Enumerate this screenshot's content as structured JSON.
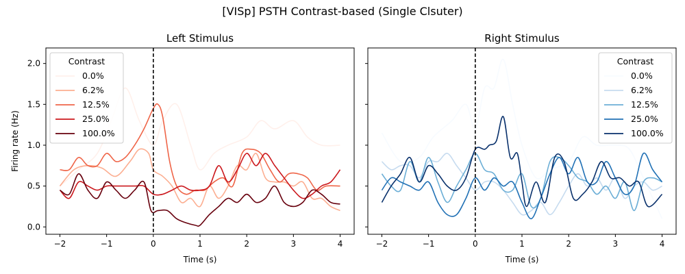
{
  "figure_title": "[VISp] PSTH Contrast-based (Single Clsuter)",
  "ylabel": "Firing rate (Hz)",
  "xlabel": "Time (s)",
  "legend_title": "Contrast",
  "chart_data": [
    {
      "type": "line",
      "title": "Left Stimulus",
      "xlabel": "Time (s)",
      "ylabel": "Firing rate (Hz)",
      "xlim": [
        -2.3,
        4.3
      ],
      "ylim": [
        -0.09,
        2.19
      ],
      "xticks": [
        -2,
        -1,
        0,
        1,
        2,
        3,
        4
      ],
      "yticks": [
        0.0,
        0.5,
        1.0,
        1.5,
        2.0
      ],
      "vline_x": 0,
      "legend": "top-left",
      "series": [
        {
          "name": "0.0%",
          "color": "#fff0eb",
          "x": [
            -2,
            -1.6,
            -1.2,
            -0.9,
            -0.6,
            -0.3,
            0,
            0.2,
            0.5,
            0.8,
            1,
            1.3,
            1.6,
            2,
            2.3,
            2.6,
            3,
            3.3,
            3.6,
            4
          ],
          "values": [
            0.5,
            0.7,
            0.9,
            1.3,
            1.7,
            1.3,
            1.0,
            1.3,
            1.5,
            1.0,
            0.7,
            0.9,
            1.0,
            1.1,
            1.3,
            1.2,
            1.3,
            1.1,
            1.0,
            1.0
          ]
        },
        {
          "name": "6.2%",
          "color": "#fcae91",
          "x": [
            -2,
            -1.7,
            -1.4,
            -1.1,
            -0.8,
            -0.5,
            -0.3,
            -0.1,
            0,
            0.2,
            0.4,
            0.6,
            0.8,
            1,
            1.2,
            1.4,
            1.6,
            1.8,
            2,
            2.2,
            2.4,
            2.6,
            2.8,
            3,
            3.2,
            3.4,
            3.6,
            3.8,
            4
          ],
          "values": [
            0.5,
            0.7,
            0.75,
            0.72,
            0.62,
            0.8,
            0.95,
            0.9,
            0.7,
            0.62,
            0.5,
            0.3,
            0.35,
            0.25,
            0.5,
            0.35,
            0.5,
            0.75,
            0.7,
            0.9,
            0.6,
            0.55,
            0.55,
            0.5,
            0.55,
            0.35,
            0.35,
            0.25,
            0.2
          ]
        },
        {
          "name": "12.5%",
          "color": "#ef6548",
          "x": [
            -2,
            -1.8,
            -1.6,
            -1.4,
            -1.2,
            -1,
            -0.8,
            -0.6,
            -0.4,
            -0.2,
            0,
            0.1,
            0.2,
            0.35,
            0.5,
            0.7,
            0.9,
            1.1,
            1.3,
            1.5,
            1.7,
            1.9,
            2.1,
            2.3,
            2.5,
            2.7,
            2.9,
            3.1,
            3.3,
            3.5,
            3.7,
            4
          ],
          "values": [
            0.7,
            0.7,
            0.85,
            0.75,
            0.75,
            0.9,
            0.8,
            0.85,
            1.0,
            1.2,
            1.45,
            1.5,
            1.35,
            0.8,
            0.5,
            0.4,
            0.45,
            0.45,
            0.55,
            0.6,
            0.5,
            0.9,
            0.95,
            0.9,
            0.7,
            0.55,
            0.65,
            0.65,
            0.6,
            0.45,
            0.5,
            0.5
          ]
        },
        {
          "name": "25.0%",
          "color": "#cb181d",
          "x": [
            -2,
            -1.8,
            -1.6,
            -1.4,
            -1.2,
            -1,
            -0.8,
            -0.6,
            -0.4,
            -0.2,
            0,
            0.2,
            0.4,
            0.6,
            0.8,
            1,
            1.2,
            1.4,
            1.6,
            1.8,
            2,
            2.2,
            2.4,
            2.6,
            2.8,
            3,
            3.2,
            3.4,
            3.6,
            3.8,
            4
          ],
          "values": [
            0.45,
            0.35,
            0.55,
            0.5,
            0.45,
            0.5,
            0.5,
            0.5,
            0.5,
            0.5,
            0.4,
            0.4,
            0.45,
            0.5,
            0.45,
            0.45,
            0.5,
            0.75,
            0.55,
            0.7,
            0.9,
            0.75,
            0.9,
            0.75,
            0.6,
            0.45,
            0.35,
            0.4,
            0.5,
            0.55,
            0.7
          ]
        },
        {
          "name": "100.0%",
          "color": "#67000d",
          "x": [
            -2,
            -1.8,
            -1.6,
            -1.4,
            -1.2,
            -1,
            -0.8,
            -0.6,
            -0.4,
            -0.2,
            -0.05,
            0.1,
            0.3,
            0.5,
            0.7,
            0.9,
            1,
            1.2,
            1.4,
            1.6,
            1.8,
            2,
            2.2,
            2.4,
            2.6,
            2.8,
            3,
            3.2,
            3.4,
            3.6,
            3.8,
            4
          ],
          "values": [
            0.45,
            0.4,
            0.65,
            0.45,
            0.35,
            0.55,
            0.45,
            0.35,
            0.45,
            0.55,
            0.2,
            0.2,
            0.2,
            0.1,
            0.05,
            0.02,
            0.02,
            0.15,
            0.25,
            0.35,
            0.3,
            0.4,
            0.3,
            0.35,
            0.5,
            0.3,
            0.25,
            0.3,
            0.45,
            0.4,
            0.3,
            0.28
          ]
        }
      ]
    },
    {
      "type": "line",
      "title": "Right Stimulus",
      "xlabel": "Time (s)",
      "ylabel": "",
      "xlim": [
        -2.3,
        4.3
      ],
      "ylim": [
        -0.09,
        2.19
      ],
      "xticks": [
        -2,
        -1,
        0,
        1,
        2,
        3,
        4
      ],
      "yticks": [
        0.0,
        0.5,
        1.0,
        1.5,
        2.0
      ],
      "vline_x": 0,
      "legend": "top-right",
      "series": [
        {
          "name": "0.0%",
          "color": "#f7fbff",
          "x": [
            -2,
            -1.6,
            -1.2,
            -0.9,
            -0.5,
            -0.2,
            0,
            0.2,
            0.4,
            0.6,
            0.8,
            1,
            1.3,
            1.6,
            2,
            2.3,
            2.6,
            3,
            3.3,
            3.6,
            4
          ],
          "values": [
            1.15,
            0.8,
            0.85,
            1.1,
            1.3,
            1.5,
            1.2,
            1.7,
            1.7,
            2.05,
            1.5,
            1.0,
            0.6,
            0.7,
            0.8,
            1.1,
            1.0,
            1.0,
            0.95,
            0.6,
            0.1
          ]
        },
        {
          "name": "6.2%",
          "color": "#c6dbef",
          "x": [
            -2,
            -1.8,
            -1.6,
            -1.4,
            -1.2,
            -1,
            -0.8,
            -0.6,
            -0.4,
            -0.2,
            0,
            0.2,
            0.4,
            0.6,
            0.8,
            1,
            1.2,
            1.4,
            1.6,
            1.8,
            2,
            2.2,
            2.4,
            2.6,
            2.8,
            3,
            3.2,
            3.4,
            3.6,
            3.8,
            4
          ],
          "values": [
            0.8,
            0.7,
            0.75,
            0.75,
            0.6,
            0.8,
            0.8,
            0.9,
            0.75,
            0.6,
            0.45,
            0.55,
            0.55,
            0.45,
            0.3,
            0.15,
            0.2,
            0.3,
            0.15,
            0.3,
            0.5,
            0.65,
            0.5,
            0.6,
            0.45,
            0.6,
            0.35,
            0.5,
            0.55,
            0.45,
            0.5
          ]
        },
        {
          "name": "12.5%",
          "color": "#6baed6",
          "x": [
            -2,
            -1.8,
            -1.6,
            -1.4,
            -1.2,
            -1,
            -0.8,
            -0.6,
            -0.4,
            -0.2,
            0,
            0.2,
            0.4,
            0.6,
            0.8,
            1,
            1.2,
            1.4,
            1.6,
            1.8,
            2,
            2.2,
            2.4,
            2.6,
            2.8,
            3,
            3.2,
            3.4,
            3.6,
            3.8,
            4
          ],
          "values": [
            0.65,
            0.5,
            0.45,
            0.8,
            0.55,
            0.85,
            0.55,
            0.3,
            0.5,
            0.7,
            0.9,
            0.7,
            0.65,
            0.45,
            0.45,
            0.65,
            0.25,
            0.35,
            0.8,
            0.85,
            0.75,
            0.6,
            0.55,
            0.4,
            0.5,
            0.35,
            0.55,
            0.2,
            0.55,
            0.6,
            0.55
          ]
        },
        {
          "name": "25.0%",
          "color": "#2171b5",
          "x": [
            -2,
            -1.8,
            -1.6,
            -1.4,
            -1.2,
            -1,
            -0.8,
            -0.6,
            -0.4,
            -0.2,
            0,
            0.2,
            0.4,
            0.6,
            0.8,
            1,
            1.2,
            1.4,
            1.6,
            1.8,
            2,
            2.2,
            2.4,
            2.6,
            2.8,
            3,
            3.2,
            3.4,
            3.6,
            3.8,
            4
          ],
          "values": [
            0.45,
            0.6,
            0.55,
            0.5,
            0.45,
            0.55,
            0.3,
            0.15,
            0.15,
            0.35,
            0.6,
            0.45,
            0.6,
            0.5,
            0.55,
            0.3,
            0.1,
            0.35,
            0.65,
            0.85,
            0.65,
            0.85,
            0.55,
            0.55,
            0.8,
            0.6,
            0.4,
            0.5,
            0.9,
            0.7,
            0.55
          ]
        },
        {
          "name": "100.0%",
          "color": "#08306b",
          "x": [
            -2,
            -1.8,
            -1.6,
            -1.4,
            -1.2,
            -1,
            -0.8,
            -0.6,
            -0.4,
            -0.2,
            0,
            0.2,
            0.3,
            0.45,
            0.6,
            0.75,
            0.9,
            1,
            1.1,
            1.3,
            1.5,
            1.7,
            1.9,
            2.1,
            2.3,
            2.5,
            2.7,
            2.9,
            3.1,
            3.3,
            3.5,
            3.7,
            4
          ],
          "values": [
            0.3,
            0.5,
            0.65,
            0.85,
            0.55,
            0.75,
            0.65,
            0.5,
            0.45,
            0.6,
            0.95,
            0.95,
            1.0,
            1.05,
            1.35,
            0.85,
            0.9,
            0.55,
            0.25,
            0.55,
            0.3,
            0.85,
            0.8,
            0.35,
            0.4,
            0.55,
            0.8,
            0.6,
            0.6,
            0.5,
            0.55,
            0.25,
            0.4
          ]
        }
      ]
    }
  ]
}
